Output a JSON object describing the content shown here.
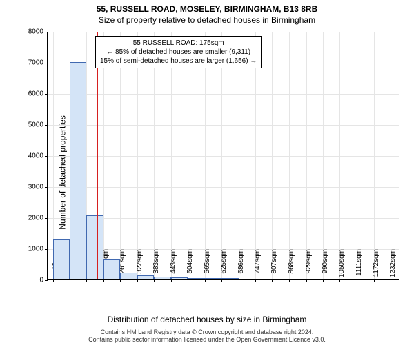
{
  "title": "55, RUSSELL ROAD, MOSELEY, BIRMINGHAM, B13 8RB",
  "subtitle": "Size of property relative to detached houses in Birmingham",
  "ylabel": "Number of detached properties",
  "xlabel": "Distribution of detached houses by size in Birmingham",
  "footer_line1": "Contains HM Land Registry data © Crown copyright and database right 2024.",
  "footer_line2": "Contains public sector information licensed under the Open Government Licence v3.0.",
  "chart": {
    "type": "histogram",
    "bar_fill": "#d4e4f7",
    "bar_stroke": "#4169b0",
    "grid_color": "#e5e5e5",
    "refline_color": "#d62020",
    "refline_x": 175,
    "xlim": [
      0,
      1265
    ],
    "ylim": [
      0,
      8000
    ],
    "yticks": [
      0,
      1000,
      2000,
      3000,
      4000,
      5000,
      6000,
      7000,
      8000
    ],
    "xticks": [
      {
        "pos": 19,
        "label": "19sqm"
      },
      {
        "pos": 79,
        "label": "79sqm"
      },
      {
        "pos": 140,
        "label": "140sqm"
      },
      {
        "pos": 201,
        "label": "201sqm"
      },
      {
        "pos": 261,
        "label": "261sqm"
      },
      {
        "pos": 322,
        "label": "322sqm"
      },
      {
        "pos": 383,
        "label": "383sqm"
      },
      {
        "pos": 443,
        "label": "443sqm"
      },
      {
        "pos": 504,
        "label": "504sqm"
      },
      {
        "pos": 565,
        "label": "565sqm"
      },
      {
        "pos": 625,
        "label": "625sqm"
      },
      {
        "pos": 686,
        "label": "686sqm"
      },
      {
        "pos": 747,
        "label": "747sqm"
      },
      {
        "pos": 807,
        "label": "807sqm"
      },
      {
        "pos": 868,
        "label": "868sqm"
      },
      {
        "pos": 929,
        "label": "929sqm"
      },
      {
        "pos": 990,
        "label": "990sqm"
      },
      {
        "pos": 1050,
        "label": "1050sqm"
      },
      {
        "pos": 1111,
        "label": "1111sqm"
      },
      {
        "pos": 1172,
        "label": "1172sqm"
      },
      {
        "pos": 1232,
        "label": "1232sqm"
      }
    ],
    "bars": [
      {
        "x": 19,
        "w": 60,
        "v": 1300
      },
      {
        "x": 79,
        "w": 61,
        "v": 7000
      },
      {
        "x": 140,
        "w": 61,
        "v": 2060
      },
      {
        "x": 201,
        "w": 60,
        "v": 650
      },
      {
        "x": 261,
        "w": 61,
        "v": 230
      },
      {
        "x": 322,
        "w": 61,
        "v": 130
      },
      {
        "x": 383,
        "w": 60,
        "v": 80
      },
      {
        "x": 443,
        "w": 61,
        "v": 60
      },
      {
        "x": 504,
        "w": 61,
        "v": 40
      },
      {
        "x": 565,
        "w": 60,
        "v": 40
      },
      {
        "x": 625,
        "w": 61,
        "v": 40
      },
      {
        "x": 686,
        "w": 61,
        "v": 0
      },
      {
        "x": 747,
        "w": 60,
        "v": 0
      },
      {
        "x": 807,
        "w": 61,
        "v": 0
      },
      {
        "x": 868,
        "w": 61,
        "v": 0
      },
      {
        "x": 929,
        "w": 61,
        "v": 0
      },
      {
        "x": 990,
        "w": 60,
        "v": 0
      },
      {
        "x": 1050,
        "w": 61,
        "v": 0
      },
      {
        "x": 1111,
        "w": 61,
        "v": 0
      },
      {
        "x": 1172,
        "w": 60,
        "v": 0
      }
    ]
  },
  "annotation": {
    "line1": "55 RUSSELL ROAD: 175sqm",
    "line2": "← 85% of detached houses are smaller (9,311)",
    "line3": "15% of semi-detached houses are larger (1,656) →"
  }
}
